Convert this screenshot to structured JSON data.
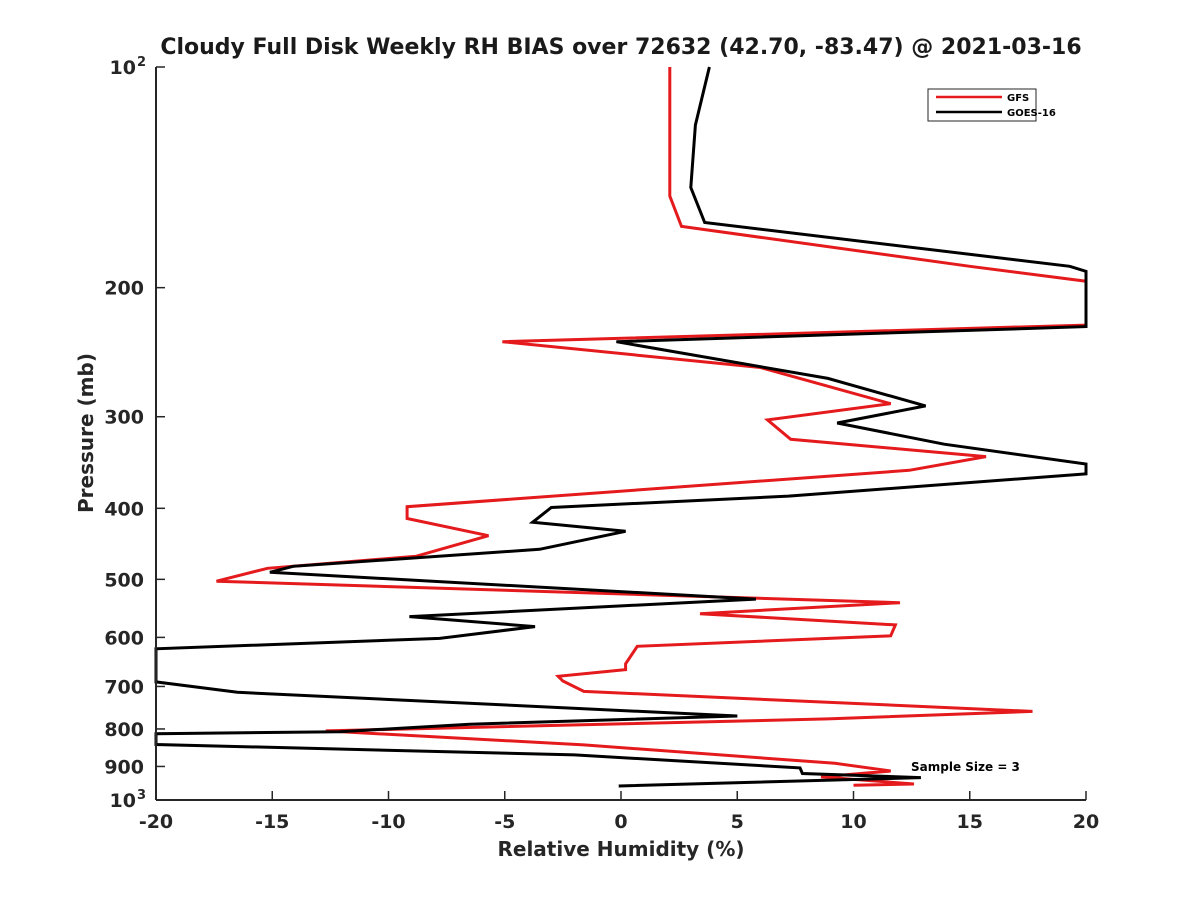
{
  "chart_data": {
    "type": "line",
    "title": "Cloudy Full Disk Weekly RH BIAS over 72632 (42.70, -83.47) @ 2021-03-16",
    "xlabel": "Relative Humidity (%)",
    "ylabel": "Pressure (mb)",
    "xlim": [
      -20,
      20
    ],
    "ylim": [
      100,
      1000
    ],
    "y_scale": "log",
    "y_reversed": true,
    "x_ticks": [
      "-20",
      "-15",
      "-10",
      "-5",
      "0",
      "5",
      "10",
      "15",
      "20"
    ],
    "x_tick_values": [
      -20,
      -15,
      -10,
      -5,
      0,
      5,
      10,
      15,
      20
    ],
    "y_ticks": [
      {
        "value": 100,
        "label": "10",
        "sup": "2"
      },
      {
        "value": 200,
        "label": "200",
        "sup": ""
      },
      {
        "value": 300,
        "label": "300",
        "sup": ""
      },
      {
        "value": 400,
        "label": "400",
        "sup": ""
      },
      {
        "value": 500,
        "label": "500",
        "sup": ""
      },
      {
        "value": 600,
        "label": "600",
        "sup": ""
      },
      {
        "value": 700,
        "label": "700",
        "sup": ""
      },
      {
        "value": 800,
        "label": "800",
        "sup": ""
      },
      {
        "value": 900,
        "label": "900",
        "sup": ""
      },
      {
        "value": 1000,
        "label": "10",
        "sup": "3"
      }
    ],
    "grid": false,
    "legend_position": "top-right",
    "annotation": "Sample Size = 3",
    "series": [
      {
        "name": "GFS",
        "color": "#e41a1c",
        "points": [
          [
            2.1,
            100
          ],
          [
            2.1,
            150
          ],
          [
            2.6,
            165
          ],
          [
            15,
            187
          ],
          [
            20,
            196
          ],
          [
            20,
            225
          ],
          [
            -5.1,
            237
          ],
          [
            6,
            257
          ],
          [
            11.6,
            288
          ],
          [
            6.3,
            303
          ],
          [
            7.3,
            322
          ],
          [
            15.7,
            340
          ],
          [
            12.4,
            355
          ],
          [
            -9.2,
            398
          ],
          [
            -9.2,
            413
          ],
          [
            -5.7,
            436
          ],
          [
            -8.8,
            465
          ],
          [
            -15.2,
            483
          ],
          [
            -17.4,
            503
          ],
          [
            12.0,
            538
          ],
          [
            3.4,
            557
          ],
          [
            11.8,
            577
          ],
          [
            11.6,
            597
          ],
          [
            0.7,
            617
          ],
          [
            0.2,
            652
          ],
          [
            0.2,
            664
          ],
          [
            -2.7,
            678
          ],
          [
            -2.5,
            688
          ],
          [
            -1.6,
            711
          ],
          [
            17.7,
            757
          ],
          [
            8.9,
            775
          ],
          [
            -12.7,
            805
          ],
          [
            -1.6,
            841
          ],
          [
            9.2,
            891
          ],
          [
            11.6,
            913
          ],
          [
            8.6,
            930
          ],
          [
            12.6,
            951
          ],
          [
            10.0,
            955
          ]
        ]
      },
      {
        "name": "GOES-16",
        "color": "#000000",
        "points": [
          [
            3.8,
            100
          ],
          [
            3.2,
            120
          ],
          [
            3.0,
            146
          ],
          [
            3.6,
            163
          ],
          [
            19.3,
            187
          ],
          [
            20,
            190
          ],
          [
            20,
            226
          ],
          [
            -0.2,
            237
          ],
          [
            8.9,
            266
          ],
          [
            13.1,
            290
          ],
          [
            9.3,
            306
          ],
          [
            13.9,
            327
          ],
          [
            20,
            348
          ],
          [
            20,
            359
          ],
          [
            7.2,
            385
          ],
          [
            -3,
            399
          ],
          [
            -3.8,
            418
          ],
          [
            0.2,
            430
          ],
          [
            -3.5,
            455
          ],
          [
            -14.1,
            480
          ],
          [
            -15.1,
            489
          ],
          [
            5.8,
            532
          ],
          [
            -9.1,
            562
          ],
          [
            -3.7,
            580
          ],
          [
            -7.8,
            602
          ],
          [
            -20.0,
            622
          ],
          [
            -20.0,
            690
          ],
          [
            -16.5,
            713
          ],
          [
            5.0,
            768
          ],
          [
            -6.5,
            788
          ],
          [
            -12.1,
            807
          ],
          [
            -20.0,
            812
          ],
          [
            -20.0,
            840
          ],
          [
            -2.0,
            868
          ],
          [
            7.7,
            904
          ],
          [
            7.8,
            920
          ],
          [
            12.9,
            932
          ],
          [
            -0.1,
            957
          ]
        ]
      }
    ]
  }
}
